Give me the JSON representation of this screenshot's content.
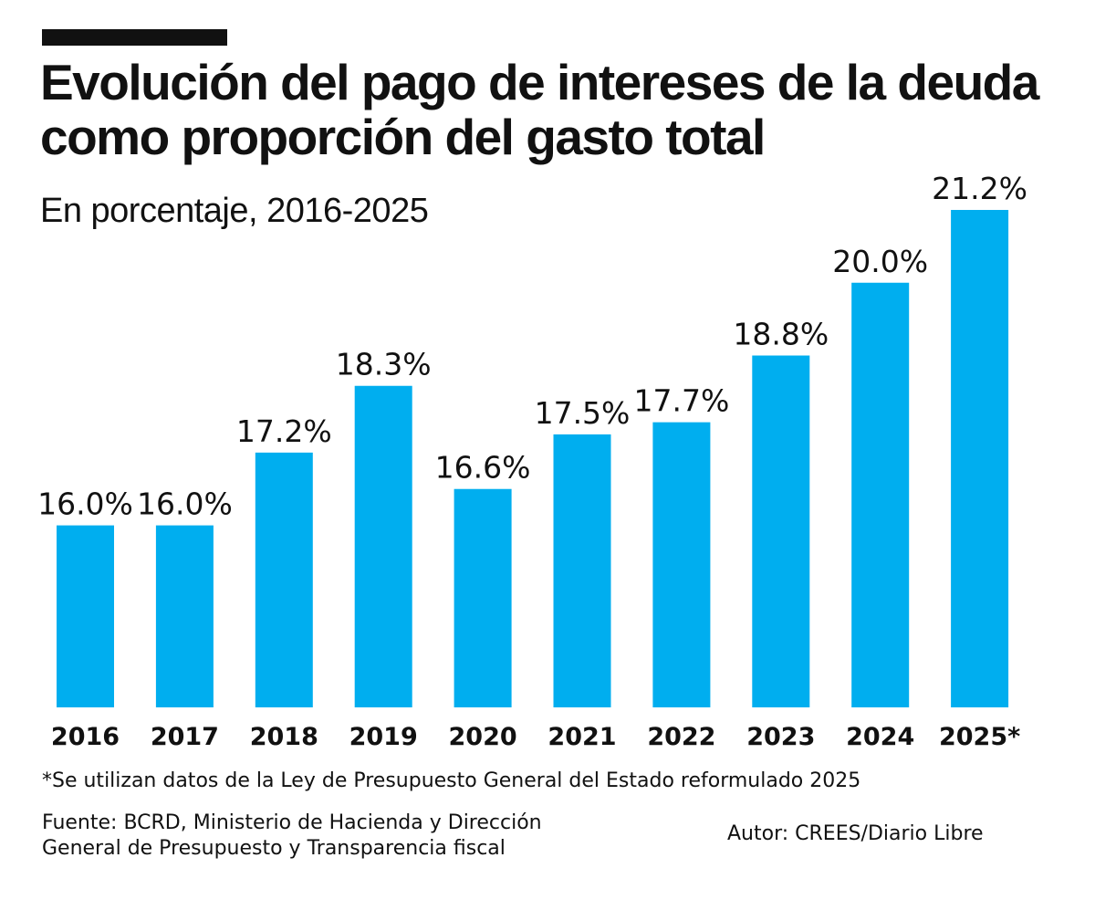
{
  "title": "Evolución del pago de intereses de la deuda como proporción del gasto total",
  "subtitle": "En porcentaje, 2016-2025",
  "note": "*Se utilizan datos de la Ley de Presupuesto General del Estado reformulado 2025",
  "source_line1": "Fuente: BCRD, Ministerio de Hacienda y Dirección",
  "source_line2": "General de Presupuesto y Transparencia fiscal",
  "author": "Autor:  CREES/Diario Libre",
  "colors": {
    "bar": "#00AEEF",
    "text": "#111111"
  },
  "chart_data": {
    "type": "bar",
    "title": "Evolución del pago de intereses de la deuda como proporción del gasto total",
    "subtitle": "En porcentaje, 2016-2025",
    "categories": [
      "2016",
      "2017",
      "2018",
      "2019",
      "2020",
      "2021",
      "2022",
      "2023",
      "2024",
      "2025*"
    ],
    "values": [
      16.0,
      16.0,
      17.2,
      18.3,
      16.6,
      17.5,
      17.7,
      18.8,
      20.0,
      21.2
    ],
    "labels": [
      "16.0%",
      "16.0%",
      "17.2%",
      "18.3%",
      "16.6%",
      "17.5%",
      "17.7%",
      "18.8%",
      "20.0%",
      "21.2%"
    ],
    "ylim": [
      13,
      21.2
    ],
    "grid": false,
    "legend": "none"
  }
}
